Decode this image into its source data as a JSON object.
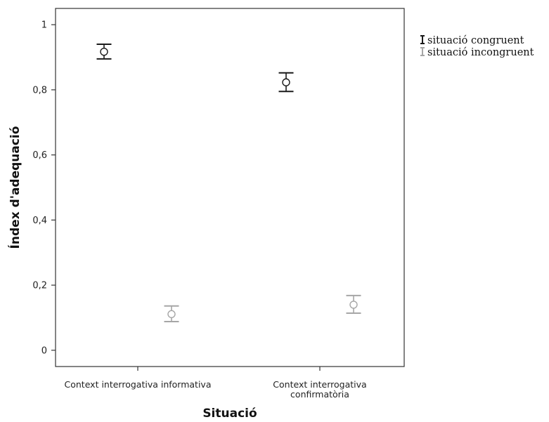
{
  "chart_data": {
    "type": "errorbar",
    "xlabel": "Situació",
    "ylabel": "Índex d'adequació",
    "ylim": [
      -0.05,
      1.05
    ],
    "y_ticks": [
      {
        "value": 0,
        "label": "0"
      },
      {
        "value": 0.2,
        "label": "0,2"
      },
      {
        "value": 0.4,
        "label": "0,4"
      },
      {
        "value": 0.6,
        "label": "0,6"
      },
      {
        "value": 0.8,
        "label": "0,8"
      },
      {
        "value": 1,
        "label": "1"
      }
    ],
    "categories": [
      {
        "lines": [
          "Context interrogativa informativa"
        ]
      },
      {
        "lines": [
          "Context interrogativa",
          "confirmatòria"
        ]
      }
    ],
    "series": [
      {
        "name": "situació congruent",
        "color": "#1a1a1a",
        "means": [
          0.917,
          0.823
        ],
        "lower": [
          0.895,
          0.795
        ],
        "upper": [
          0.94,
          0.852
        ]
      },
      {
        "name": "situació incongruent",
        "color": "#a6a6a6",
        "means": [
          0.111,
          0.14
        ],
        "lower": [
          0.088,
          0.114
        ],
        "upper": [
          0.136,
          0.168
        ]
      }
    ],
    "legend_position": "top-right, outside plot",
    "grid": false
  }
}
